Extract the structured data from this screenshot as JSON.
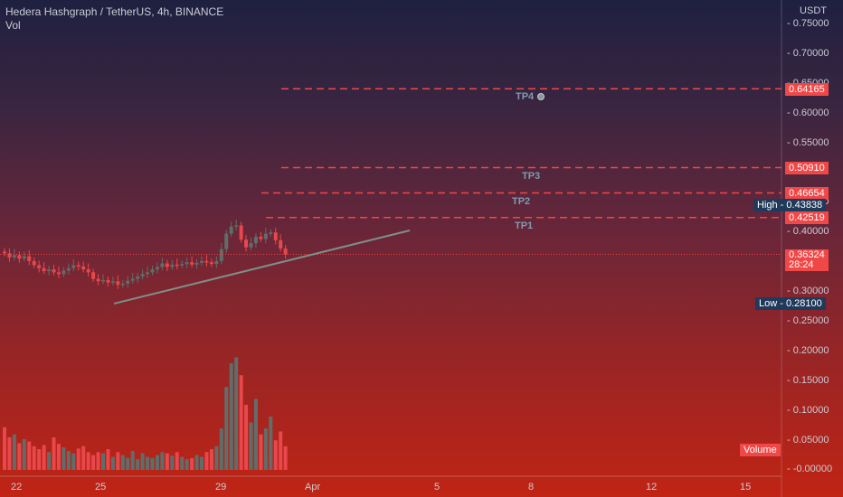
{
  "header": {
    "symbol_line": "Hedera Hashgraph / TetherUS, 4h, BINANCE",
    "vol_label": "Vol"
  },
  "axis": {
    "currency": "USDT",
    "y_ticks": [
      "0.75000",
      "0.70000",
      "0.65000",
      "0.60000",
      "0.55000",
      "0.50000",
      "0.45000",
      "0.40000",
      "0.35000",
      "0.30000",
      "0.25000",
      "0.20000",
      "0.15000",
      "0.10000",
      "0.05000",
      "-0.00000"
    ],
    "x_ticks": [
      "22",
      "25",
      "29",
      "Apr",
      "5",
      "8",
      "12",
      "15"
    ]
  },
  "price_tags": {
    "tp4": "0.64165",
    "tp3": "0.50910",
    "tp2": "0.46654",
    "high_label": "High",
    "high_value": "0.43838",
    "tp1": "0.42519",
    "current_price": "0.36324",
    "countdown": "28:24",
    "low_label": "Low",
    "low_value": "0.28100",
    "volume_label": "Volume"
  },
  "targets": {
    "tp1": "TP1",
    "tp2": "TP2",
    "tp3": "TP3",
    "tp4": "TP4"
  },
  "colors": {
    "up": "#5f6e6a",
    "down": "#e8474b",
    "target_line": "#f04747",
    "trendline": "#7e8f8a"
  },
  "chart_data": {
    "type": "candlestick",
    "title": "Hedera Hashgraph / TetherUS, 4h, BINANCE",
    "y_unit": "USDT",
    "ylim": [
      0.25,
      0.75
    ],
    "targets": [
      {
        "name": "TP1",
        "value": 0.42519
      },
      {
        "name": "TP2",
        "value": 0.46654
      },
      {
        "name": "TP3",
        "value": 0.5091
      },
      {
        "name": "TP4",
        "value": 0.64165
      }
    ],
    "high": 0.43838,
    "low": 0.281,
    "last": 0.36324,
    "candles_close": [
      0.365,
      0.358,
      0.362,
      0.356,
      0.36,
      0.352,
      0.345,
      0.34,
      0.335,
      0.338,
      0.333,
      0.33,
      0.336,
      0.34,
      0.345,
      0.343,
      0.338,
      0.333,
      0.322,
      0.318,
      0.32,
      0.316,
      0.318,
      0.312,
      0.314,
      0.319,
      0.322,
      0.326,
      0.33,
      0.333,
      0.338,
      0.342,
      0.348,
      0.342,
      0.346,
      0.345,
      0.347,
      0.35,
      0.346,
      0.349,
      0.352,
      0.35,
      0.347,
      0.352,
      0.372,
      0.398,
      0.41,
      0.412,
      0.388,
      0.375,
      0.382,
      0.393,
      0.389,
      0.398,
      0.4,
      0.387,
      0.373,
      0.363
    ],
    "volumes": [
      0.072,
      0.055,
      0.06,
      0.045,
      0.052,
      0.048,
      0.04,
      0.035,
      0.042,
      0.03,
      0.055,
      0.044,
      0.038,
      0.032,
      0.028,
      0.036,
      0.04,
      0.03,
      0.025,
      0.03,
      0.028,
      0.035,
      0.022,
      0.03,
      0.025,
      0.02,
      0.032,
      0.018,
      0.028,
      0.022,
      0.02,
      0.025,
      0.03,
      0.028,
      0.024,
      0.03,
      0.022,
      0.018,
      0.02,
      0.025,
      0.022,
      0.03,
      0.035,
      0.04,
      0.07,
      0.14,
      0.18,
      0.19,
      0.16,
      0.11,
      0.08,
      0.12,
      0.06,
      0.07,
      0.09,
      0.05,
      0.065,
      0.04
    ]
  }
}
